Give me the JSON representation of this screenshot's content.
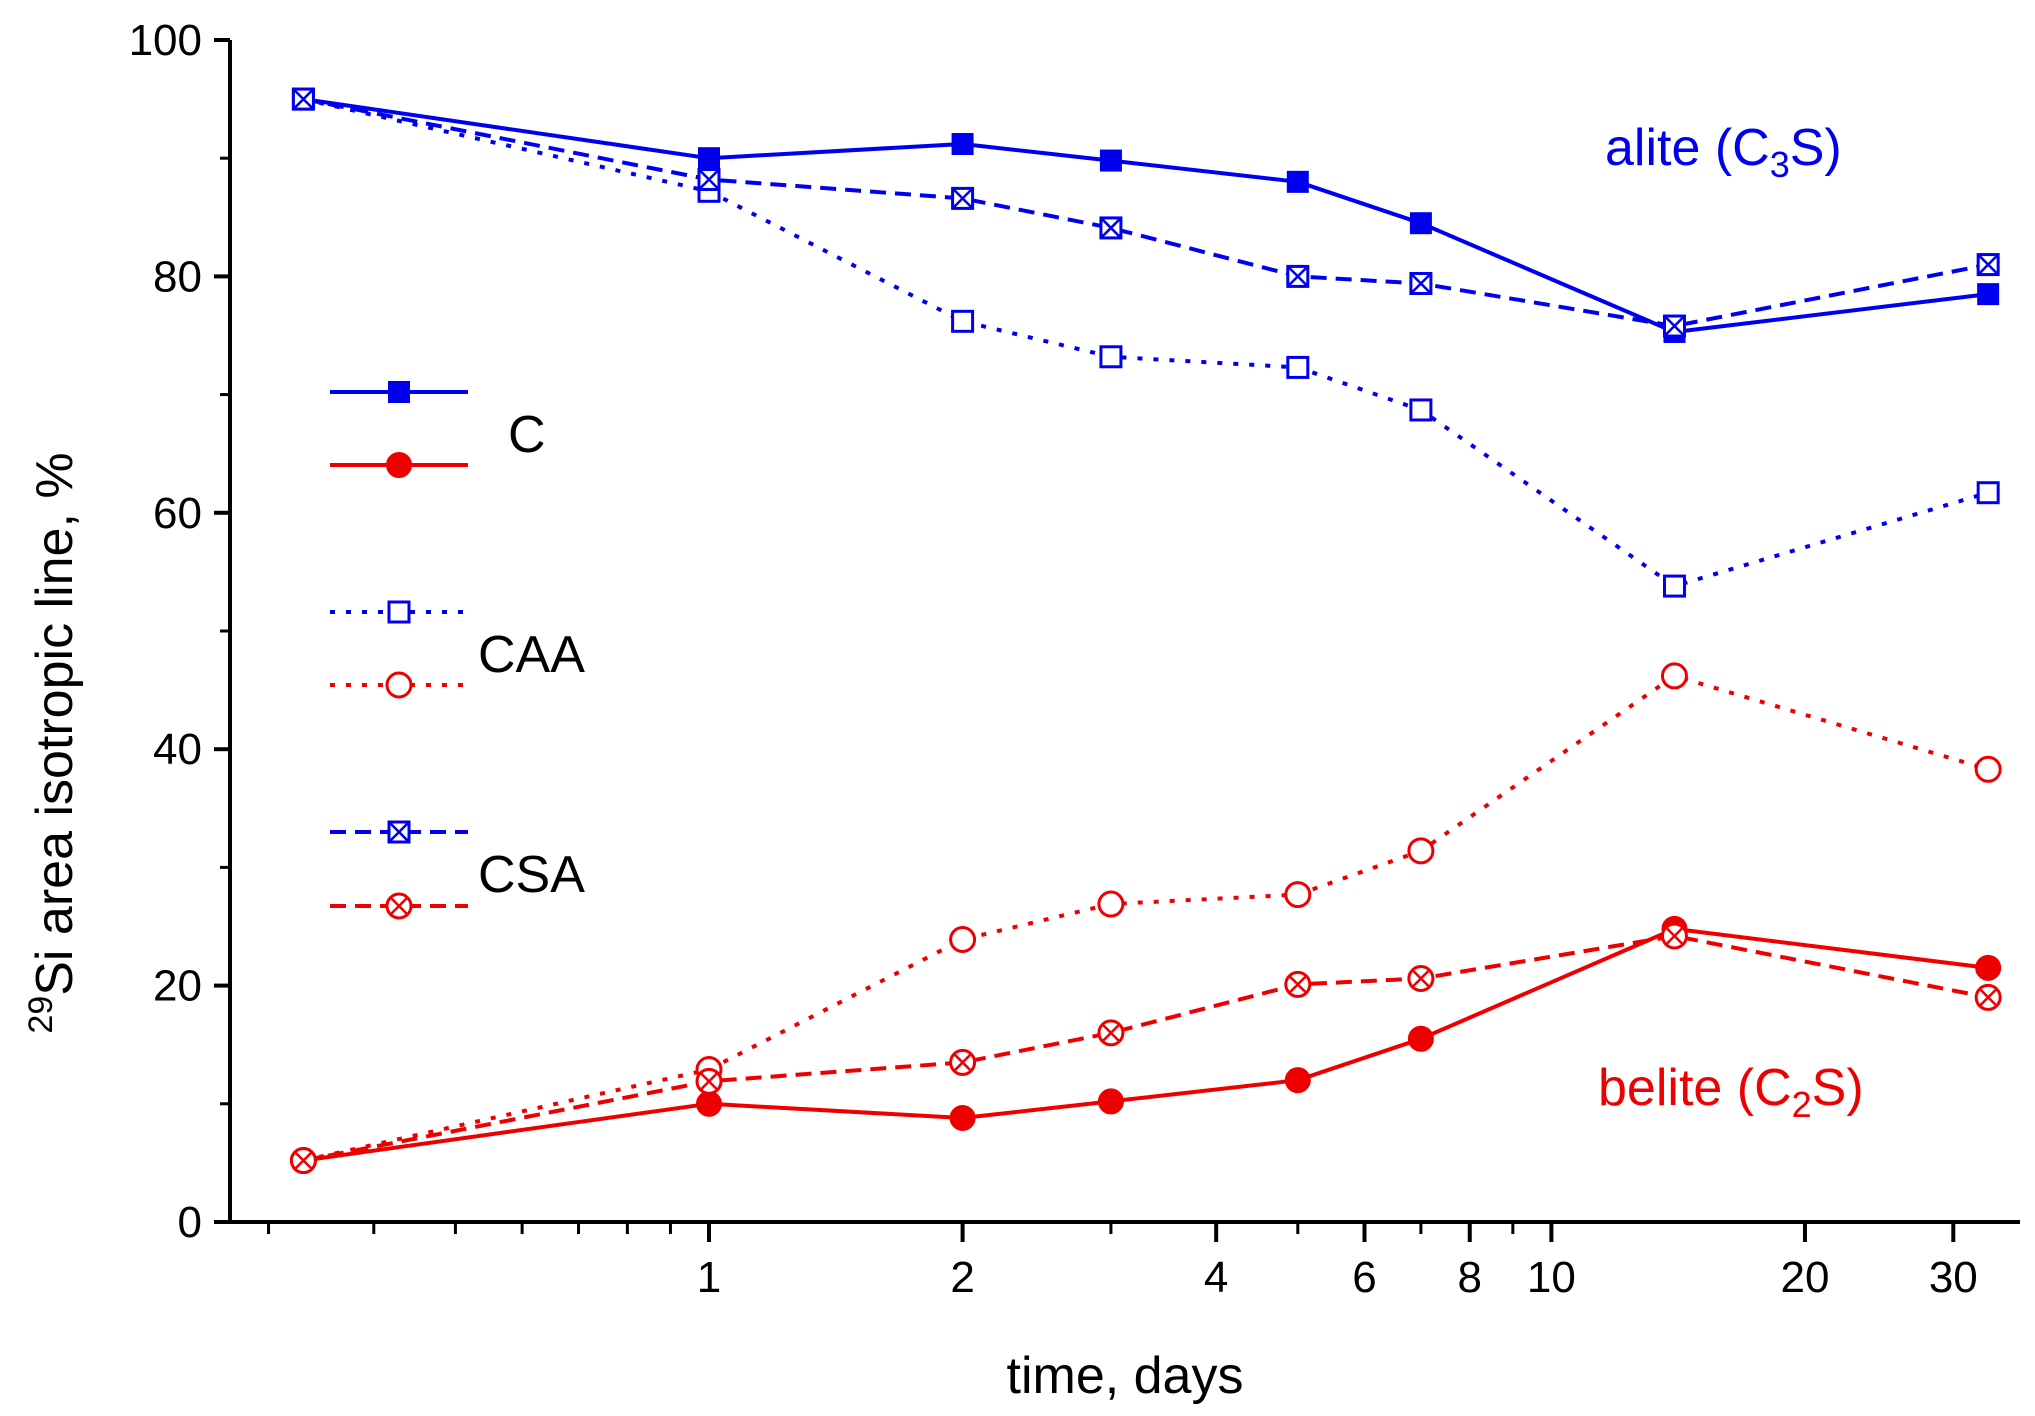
{
  "chart_data": {
    "type": "line",
    "xlabel": "time, days",
    "ylabel_sup": "29",
    "ylabel": "Si area isotropic line, %",
    "xscale": "log",
    "xlim": [
      0.27,
      36
    ],
    "ylim": [
      0,
      100
    ],
    "x_ticks": [
      {
        "value": 1,
        "label": "1"
      },
      {
        "value": 2,
        "label": "2"
      },
      {
        "value": 4,
        "label": "4"
      },
      {
        "value": 6,
        "label": "6"
      },
      {
        "value": 8,
        "label": "8"
      },
      {
        "value": 10,
        "label": "10"
      },
      {
        "value": 20,
        "label": "20"
      },
      {
        "value": 30,
        "label": "30"
      }
    ],
    "y_ticks": [
      {
        "value": 0,
        "label": "0"
      },
      {
        "value": 20,
        "label": "20"
      },
      {
        "value": 40,
        "label": "40"
      },
      {
        "value": 60,
        "label": "60"
      },
      {
        "value": 80,
        "label": "80"
      },
      {
        "value": 100,
        "label": "100"
      }
    ],
    "x": [
      0.33,
      1,
      2,
      3,
      5,
      7,
      14,
      33
    ],
    "series": [
      {
        "name": "C alite",
        "group": "C",
        "phase": "alite",
        "color": "#0000ee",
        "dash": "solid",
        "marker": "square-filled",
        "values": [
          95,
          90,
          91.2,
          89.8,
          88,
          84.5,
          75.3,
          78.5
        ]
      },
      {
        "name": "C belite",
        "group": "C",
        "phase": "belite",
        "color": "#ee0000",
        "dash": "solid",
        "marker": "circle-filled",
        "values": [
          5.2,
          10,
          8.8,
          10.2,
          12,
          15.5,
          24.8,
          21.5
        ]
      },
      {
        "name": "CAA alite",
        "group": "CAA",
        "phase": "alite",
        "color": "#0000ee",
        "dash": "dot",
        "marker": "square-open",
        "values": [
          95,
          87.2,
          76.2,
          73.2,
          72.3,
          68.7,
          53.8,
          61.7
        ]
      },
      {
        "name": "CAA belite",
        "group": "CAA",
        "phase": "belite",
        "color": "#ee0000",
        "dash": "dot",
        "marker": "circle-open",
        "values": [
          5.2,
          12.9,
          23.9,
          26.9,
          27.7,
          31.4,
          46.2,
          38.3
        ]
      },
      {
        "name": "CSA alite",
        "group": "CSA",
        "phase": "alite",
        "color": "#0000ee",
        "dash": "dash",
        "marker": "square-cross",
        "values": [
          95,
          88.2,
          86.6,
          84.1,
          80,
          79.4,
          75.8,
          81
        ]
      },
      {
        "name": "CSA belite",
        "group": "CSA",
        "phase": "belite",
        "color": "#ee0000",
        "dash": "dash",
        "marker": "circle-cross",
        "values": [
          5.2,
          11.9,
          13.5,
          16,
          20.1,
          20.6,
          24.2,
          19
        ]
      }
    ],
    "legend": [
      {
        "label": "C",
        "series": [
          "C alite",
          "C belite"
        ]
      },
      {
        "label": "CAA",
        "series": [
          "CAA alite",
          "CAA belite"
        ]
      },
      {
        "label": "CSA",
        "series": [
          "CSA alite",
          "CSA belite"
        ]
      }
    ],
    "annotations": [
      {
        "id": "alite",
        "text": "alite (C",
        "sub": "3",
        "tail": "S)",
        "color": "#0000ee"
      },
      {
        "id": "belite",
        "text": "belite (C",
        "sub": "2",
        "tail": "S)",
        "color": "#ee0000"
      }
    ],
    "legend_position": "left-middle"
  }
}
